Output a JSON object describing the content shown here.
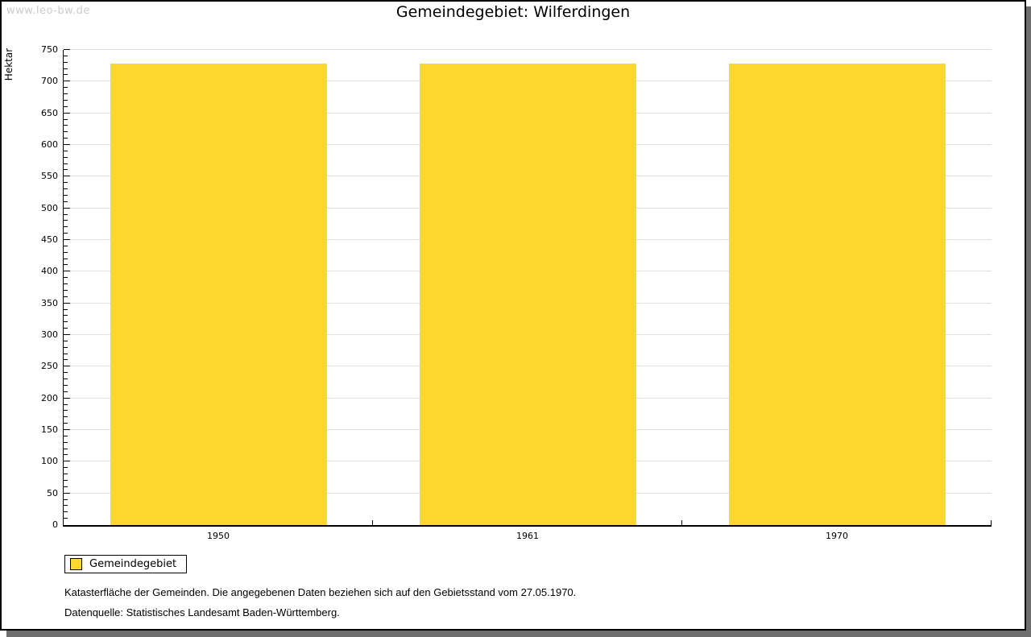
{
  "watermark": "www.leo-bw.de",
  "title": "Gemeindegebiet: Wilferdingen",
  "chart_data": {
    "type": "bar",
    "title": "Gemeindegebiet: Wilferdingen",
    "categories": [
      "1950",
      "1961",
      "1970"
    ],
    "series": [
      {
        "name": "Gemeindegebiet",
        "values": [
          729,
          729,
          729
        ]
      }
    ],
    "xlabel": "",
    "ylabel": "Hektar",
    "ylim": [
      0,
      750
    ],
    "yticks": [
      0,
      50,
      100,
      150,
      200,
      250,
      300,
      350,
      400,
      450,
      500,
      550,
      600,
      650,
      700,
      750
    ],
    "ytick_step": 50,
    "minor_tick_step": 10,
    "grid": true,
    "legend_position": "bottom-left"
  },
  "legend": {
    "items": [
      {
        "label": "Gemeindegebiet",
        "color": "#FDD62E"
      }
    ]
  },
  "footer": {
    "line1": "Katasterfläche der Gemeinden. Die angegebenen Daten beziehen sich auf den Gebietsstand vom 27.05.1970.",
    "line2": "Datenquelle: Statistisches Landesamt Baden-Württemberg."
  },
  "colors": {
    "bar": "#FDD62E",
    "grid": "#E0E0E0",
    "axis": "#000000",
    "text": "#000000",
    "watermark": "#CCCCCC",
    "shadow": "#6E6E6E",
    "background": "#FFFFFF"
  }
}
